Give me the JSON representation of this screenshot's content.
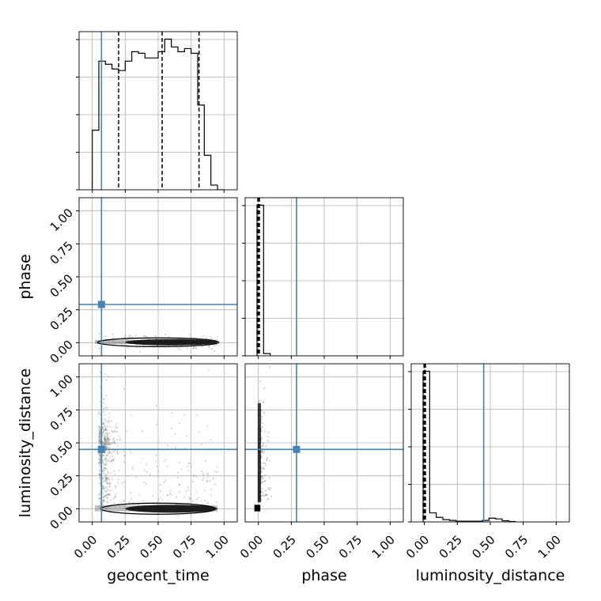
{
  "chart_data": {
    "type": "corner",
    "parameters": [
      "geocent_time",
      "phase",
      "luminosity_distance"
    ],
    "axis_labels": {
      "geocent_time": "geocent_time",
      "phase": "phase",
      "luminosity_distance": "luminosity_distance"
    },
    "ticks": [
      0.0,
      0.25,
      0.5,
      0.75,
      1.0
    ],
    "tick_labels": [
      "0.00",
      "0.25",
      "0.50",
      "0.75",
      "1.00"
    ],
    "range": [
      -0.1,
      1.1
    ],
    "truths": {
      "geocent_time": 0.07,
      "phase": 0.29,
      "luminosity_distance": 0.45
    },
    "truth_color": "#4682b4",
    "grid": true,
    "histograms": {
      "geocent_time": {
        "bin_edges": [
          0.0,
          0.05,
          0.1,
          0.15,
          0.2,
          0.25,
          0.3,
          0.35,
          0.4,
          0.45,
          0.5,
          0.55,
          0.6,
          0.65,
          0.7,
          0.75,
          0.8,
          0.85,
          0.9,
          0.95,
          1.0
        ],
        "counts": [
          0.38,
          0.82,
          0.8,
          0.77,
          0.76,
          0.82,
          0.88,
          0.87,
          0.84,
          0.84,
          0.88,
          0.96,
          0.91,
          0.88,
          0.9,
          0.87,
          0.54,
          0.22,
          0.03,
          0.0
        ],
        "quantiles": [
          0.2,
          0.53,
          0.81
        ]
      },
      "phase": {
        "bin_edges": [
          -0.01,
          0.04,
          0.09
        ],
        "counts": [
          1.0,
          0.015
        ],
        "quantiles": [
          -0.004,
          0.002,
          0.008
        ]
      },
      "luminosity_distance": {
        "bin_edges": [
          -0.01,
          0.04,
          0.09,
          0.14,
          0.19,
          0.24,
          0.29,
          0.34,
          0.39,
          0.44,
          0.49,
          0.54,
          0.59,
          0.64,
          0.69
        ],
        "counts": [
          1.0,
          0.06,
          0.03,
          0.015,
          0.01,
          0.005,
          0.005,
          0.005,
          0.005,
          0.01,
          0.025,
          0.02,
          0.008,
          0.003
        ],
        "quantiles": [
          -0.003,
          0.002,
          0.008
        ]
      }
    }
  }
}
